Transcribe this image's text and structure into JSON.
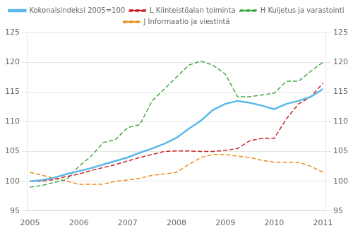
{
  "chart_data": {
    "type": "line",
    "x": [
      2005,
      2005.25,
      2005.5,
      2005.75,
      2006,
      2006.25,
      2006.5,
      2006.75,
      2007,
      2007.25,
      2007.5,
      2007.75,
      2008,
      2008.25,
      2008.5,
      2008.75,
      2009,
      2009.25,
      2009.5,
      2009.75,
      2010,
      2010.25,
      2010.5,
      2010.75,
      2011
    ],
    "series": [
      {
        "name": "Kokonaisindeksi 2005=100",
        "color": "#5bb8e8",
        "line_style": "solid",
        "values": [
          100.0,
          100.2,
          100.6,
          101.2,
          101.7,
          102.2,
          102.8,
          103.4,
          104.0,
          104.8,
          105.5,
          106.3,
          107.3,
          108.8,
          110.2,
          112.0,
          113.0,
          113.5,
          113.2,
          112.7,
          112.1,
          113.0,
          113.5,
          114.2,
          115.5
        ]
      },
      {
        "name": "L Kiinteistöalan toiminta",
        "color": "#cc2222",
        "line_style": "dashed",
        "values": [
          100.0,
          100.0,
          100.3,
          100.8,
          101.2,
          101.8,
          102.3,
          102.8,
          103.4,
          104.0,
          104.5,
          105.0,
          105.1,
          105.1,
          105.0,
          105.0,
          105.2,
          105.5,
          106.8,
          107.2,
          107.2,
          110.5,
          113.0,
          114.2,
          116.5
        ]
      },
      {
        "name": "H Kuljetus ja varastointi",
        "color": "#44aa44",
        "line_style": "dashed",
        "values": [
          99.0,
          99.3,
          99.8,
          100.3,
          102.5,
          104.2,
          106.5,
          107.0,
          109.0,
          109.5,
          113.5,
          115.5,
          117.5,
          119.5,
          120.2,
          119.5,
          118.0,
          114.2,
          114.2,
          114.5,
          114.8,
          116.8,
          116.8,
          118.5,
          120.0
        ]
      },
      {
        "name": "J Informaatio ja viestintä",
        "color": "#e89020",
        "line_style": "dashed",
        "values": [
          101.5,
          101.0,
          100.5,
          100.0,
          99.5,
          99.5,
          99.5,
          100.0,
          100.2,
          100.5,
          101.0,
          101.2,
          101.5,
          102.8,
          104.0,
          104.5,
          104.5,
          104.2,
          104.0,
          103.5,
          103.2,
          103.2,
          103.2,
          102.5,
          101.5
        ]
      }
    ],
    "xlim": [
      2004.95,
      2011.05
    ],
    "xticks": [
      2005,
      2006,
      2007,
      2008,
      2009,
      2010,
      2011
    ],
    "ylim": [
      95,
      125
    ],
    "yticks": [
      95,
      100,
      105,
      110,
      115,
      120,
      125
    ],
    "y2lim": [
      95,
      125
    ],
    "y2ticks": [
      95,
      100,
      105,
      110,
      115,
      120,
      125
    ],
    "grid": "y",
    "legend": "top"
  }
}
